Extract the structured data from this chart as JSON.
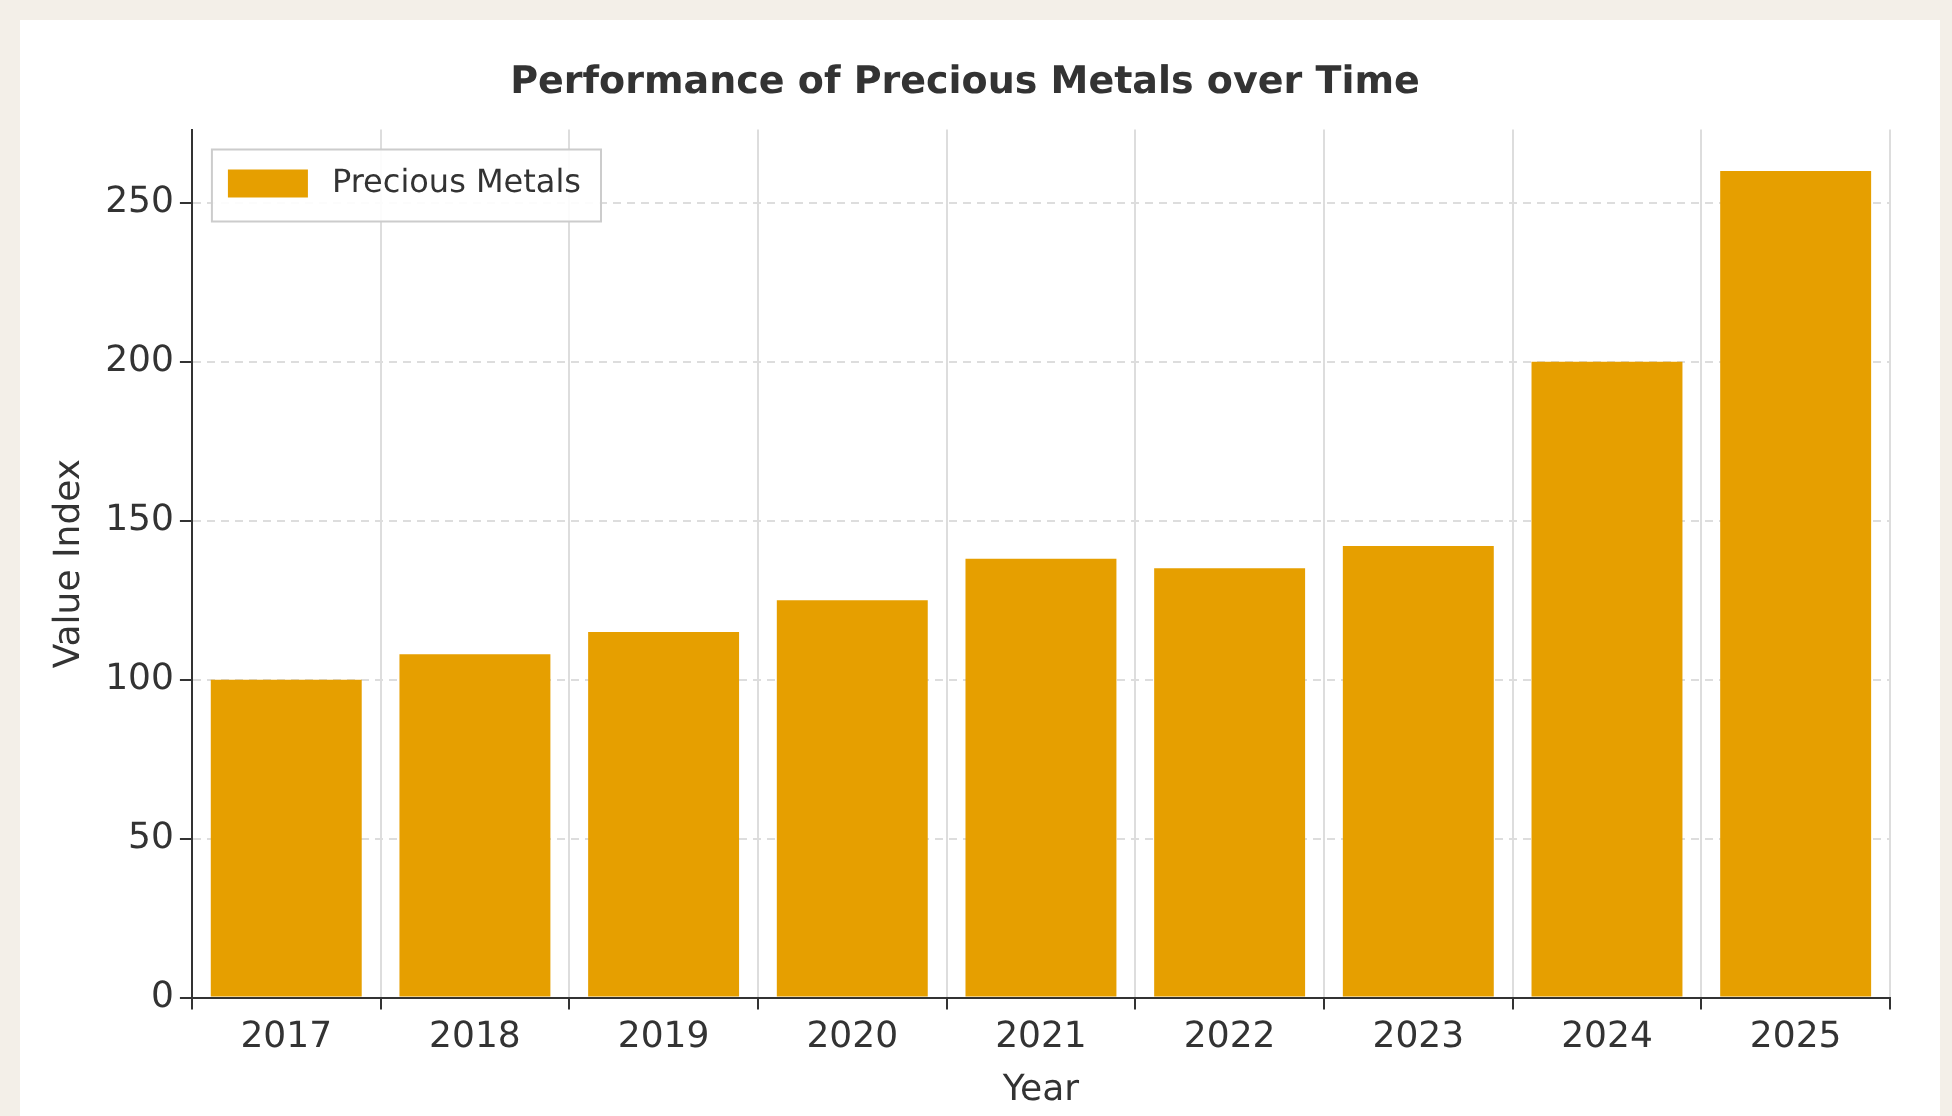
{
  "chart_data": {
    "type": "bar",
    "title": "Performance of Precious Metals over Time",
    "xlabel": "Year",
    "ylabel": "Value Index",
    "categories": [
      "2017",
      "2018",
      "2019",
      "2020",
      "2021",
      "2022",
      "2023",
      "2024",
      "2025"
    ],
    "series": [
      {
        "name": "Precious Metals",
        "color": "#e69f00",
        "values": [
          100,
          108,
          115,
          125,
          138,
          135,
          142,
          200,
          260
        ]
      }
    ],
    "ylim": [
      0,
      273
    ],
    "yticks": [
      0,
      50,
      100,
      150,
      200,
      250
    ],
    "grid": true,
    "legend": "top left"
  }
}
